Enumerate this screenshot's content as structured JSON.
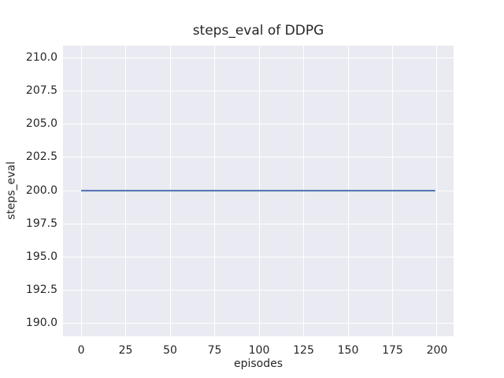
{
  "chart_data": {
    "type": "line",
    "title": "steps_eval of DDPG",
    "xlabel": "episodes",
    "ylabel": "steps_eval",
    "x_ticks": [
      0,
      25,
      50,
      75,
      100,
      125,
      150,
      175,
      200
    ],
    "x_tick_labels": [
      "0",
      "25",
      "50",
      "75",
      "100",
      "125",
      "150",
      "175",
      "200"
    ],
    "y_ticks": [
      190.0,
      192.5,
      195.0,
      197.5,
      200.0,
      202.5,
      205.0,
      207.5,
      210.0
    ],
    "y_tick_labels": [
      "190.0",
      "192.5",
      "195.0",
      "197.5",
      "200.0",
      "202.5",
      "205.0",
      "207.5",
      "210.0"
    ],
    "xlim": [
      -10.2,
      209.3
    ],
    "ylim": [
      189.05,
      210.9
    ],
    "grid": true,
    "legend_position": "none",
    "plot_bg": "#eaeaf2",
    "grid_color": "#ffffff",
    "text_color": "#262626",
    "series": [
      {
        "name": "DDPG",
        "color": "#4c72b0",
        "x": [
          0,
          199
        ],
        "y": [
          200,
          200
        ],
        "constant_value": 200
      }
    ]
  }
}
